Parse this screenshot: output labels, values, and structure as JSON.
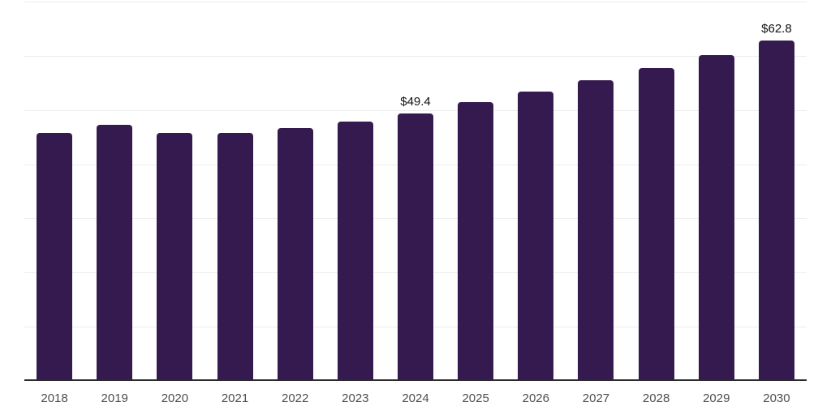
{
  "chart_data": {
    "type": "bar",
    "title": "",
    "xlabel": "",
    "ylabel": "",
    "categories": [
      "2018",
      "2019",
      "2020",
      "2021",
      "2022",
      "2023",
      "2024",
      "2025",
      "2026",
      "2027",
      "2028",
      "2029",
      "2030"
    ],
    "values": [
      45.8,
      47.3,
      45.7,
      45.7,
      46.6,
      47.9,
      49.4,
      51.4,
      53.4,
      55.5,
      57.7,
      60.1,
      62.8
    ],
    "data_labels": [
      "",
      "",
      "",
      "",
      "",
      "",
      "$49.4",
      "",
      "",
      "",
      "",
      "",
      "$62.8"
    ],
    "ylim": [
      0,
      70
    ],
    "gridline_values": [
      0,
      10,
      20,
      30,
      40,
      50,
      60,
      70
    ],
    "grid": "horizontal",
    "legend": "none",
    "colors": {
      "bar": "#341a4e",
      "data_label": "#111111",
      "axis_label": "#4d4d4d",
      "gridline": "#ededed",
      "axis_line": "#2b2b2b",
      "background": "#ffffff"
    }
  }
}
